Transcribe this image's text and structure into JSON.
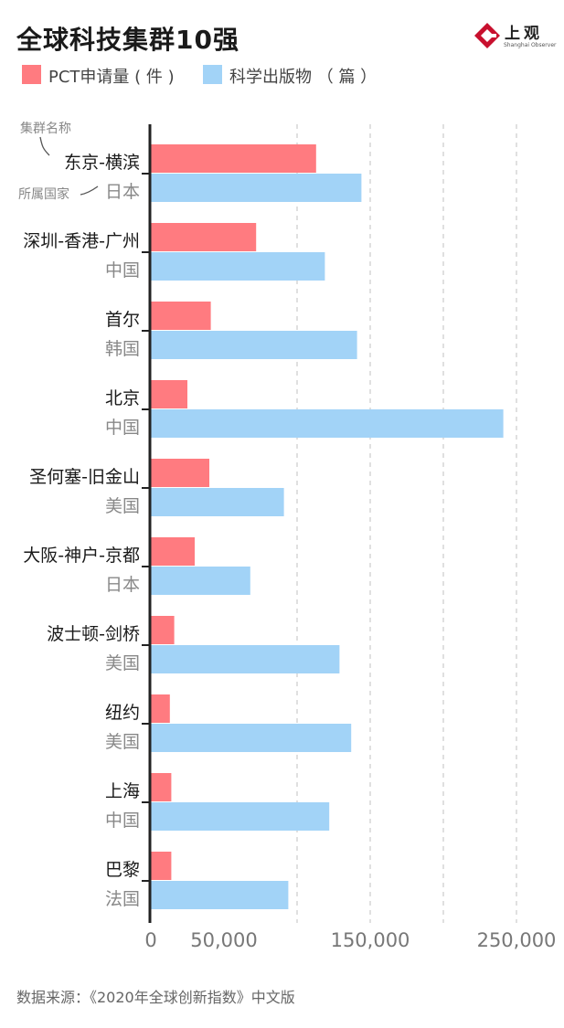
{
  "title": "全球科技集群10强",
  "logo": {
    "text": "上观",
    "sub": "Shanghai Observer"
  },
  "notes": {
    "cluster_name": "集群名称",
    "country": "所属国家"
  },
  "source": "数据来源：《2020年全球创新指数》中文版",
  "colors": {
    "pct": "#ff7b80",
    "pub": "#a2d3f7",
    "axis": "#222222",
    "grid": "#cccccc",
    "country_text": "#888888"
  },
  "chart_data": {
    "type": "bar",
    "orientation": "horizontal",
    "categories": [
      "东京-横滨",
      "深圳-香港-广州",
      "首尔",
      "北京",
      "圣何塞-旧金山",
      "大阪-神户-京都",
      "波士顿-剑桥",
      "纽约",
      "上海",
      "巴黎"
    ],
    "countries": [
      "日本",
      "中国",
      "韩国",
      "中国",
      "美国",
      "日本",
      "美国",
      "美国",
      "中国",
      "法国"
    ],
    "series": [
      {
        "name": "PCT申请量 ( 件 )",
        "color": "#ff7b80",
        "values": [
          113000,
          72000,
          41000,
          25000,
          40000,
          30000,
          16000,
          13000,
          14000,
          14000
        ]
      },
      {
        "name": "科学出版物 （ 篇 ）",
        "color": "#a2d3f7",
        "values": [
          144000,
          119000,
          141000,
          241000,
          91000,
          68000,
          129000,
          137000,
          122000,
          94000
        ]
      }
    ],
    "xlim": [
      0,
      270000
    ],
    "xticks": [
      0,
      50000,
      150000,
      250000
    ],
    "xtick_labels": [
      "0",
      "50,000",
      "150,000",
      "250,000"
    ],
    "gridlines": [
      100000,
      150000,
      200000,
      250000
    ],
    "grid": "dashed-vertical",
    "legend": "top-left"
  }
}
